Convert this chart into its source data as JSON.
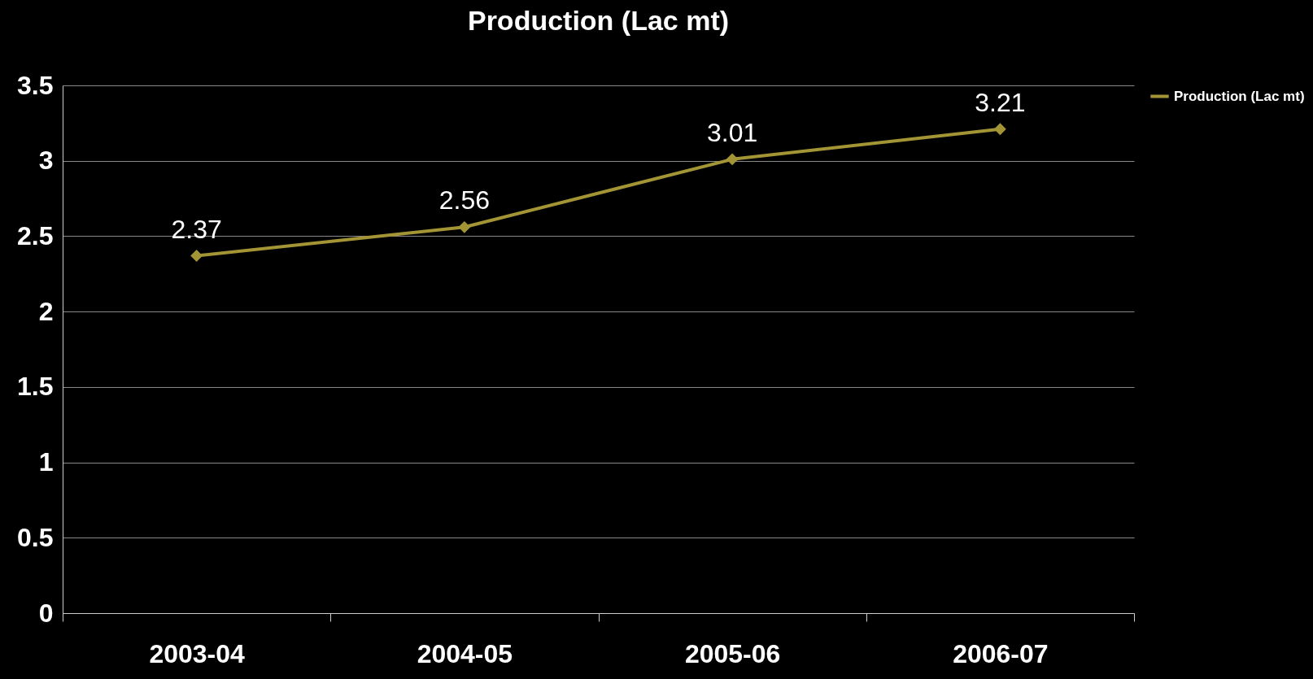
{
  "chart_data": {
    "type": "line",
    "title": "Production (Lac mt)",
    "categories": [
      "2003-04",
      "2004-05",
      "2005-06",
      "2006-07"
    ],
    "series": [
      {
        "name": "Production (Lac mt)",
        "color": "#a39535",
        "values": [
          2.37,
          2.56,
          3.01,
          3.21
        ]
      }
    ],
    "ylim": [
      0,
      3.5
    ],
    "yticks": [
      0,
      0.5,
      1,
      1.5,
      2,
      2.5,
      3,
      3.5
    ],
    "grid": "y",
    "legend": "right",
    "marker": "diamond",
    "line_style": "solid",
    "data_labels": true
  }
}
